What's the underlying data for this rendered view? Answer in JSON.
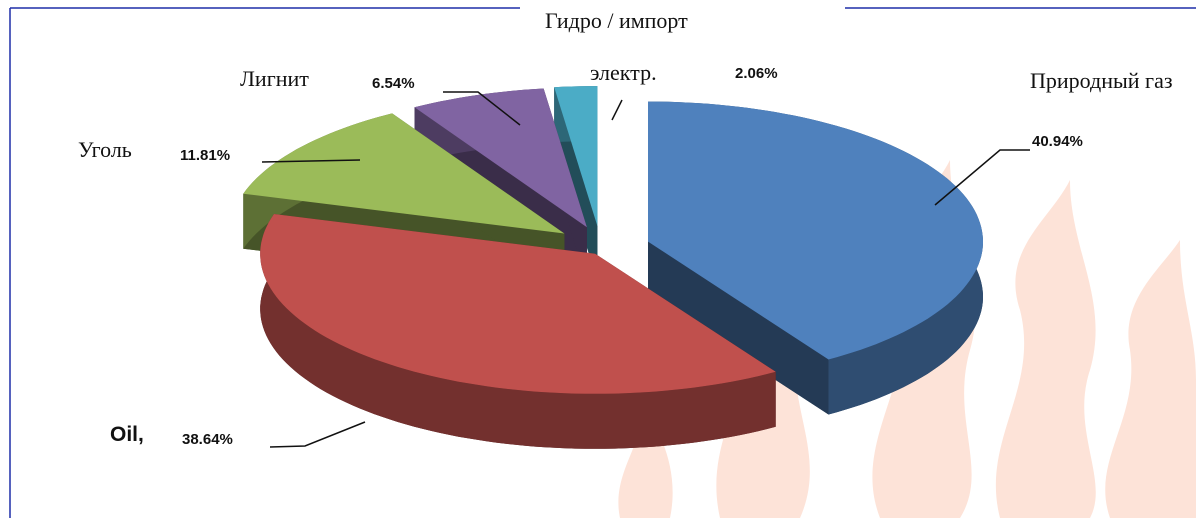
{
  "chart_data": {
    "type": "pie",
    "categories": [
      "Природный газ",
      "Oil,",
      "Уголь",
      "Лигнит",
      "Гидро / импорт электр."
    ],
    "values": [
      40.94,
      38.64,
      11.81,
      6.54,
      2.06
    ],
    "value_labels": [
      "40.94%",
      "38.64%",
      "11.81%",
      "6.54%",
      "2.06%"
    ],
    "colors": [
      "#4f81bd",
      "#c0504d",
      "#9bbb59",
      "#8064a2",
      "#4bacc6"
    ]
  }
}
